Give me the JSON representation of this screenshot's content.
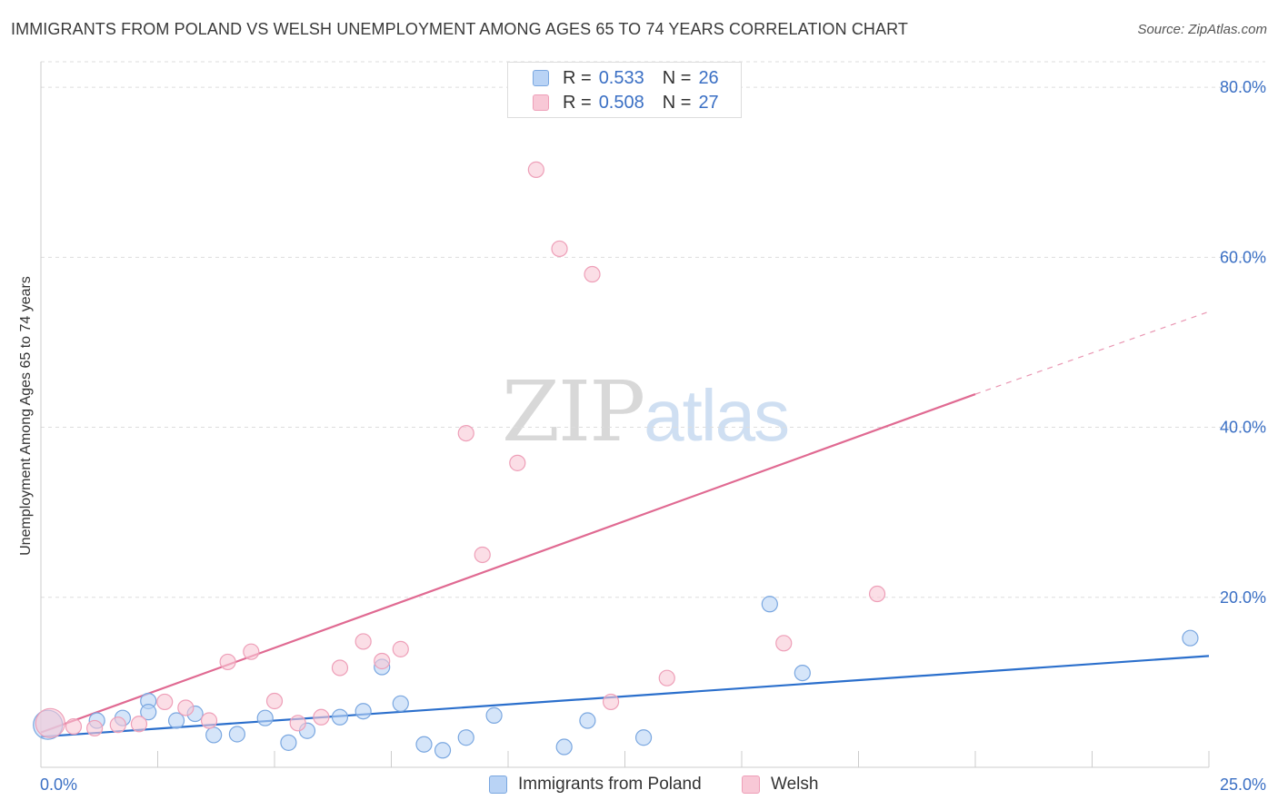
{
  "header": {
    "title": "IMMIGRANTS FROM POLAND VS WELSH UNEMPLOYMENT AMONG AGES 65 TO 74 YEARS CORRELATION CHART",
    "source": "Source: ZipAtlas.com"
  },
  "watermark": {
    "zip": "ZIP",
    "atlas": "atlas"
  },
  "legend": {
    "items": [
      {
        "r_label": "R =",
        "r_value": "0.533",
        "n_label": "N =",
        "n_value": "26"
      },
      {
        "r_label": "R =",
        "r_value": "0.508",
        "n_label": "N =",
        "n_value": "27"
      }
    ]
  },
  "bottom_legend": [
    "Immigrants from Poland",
    "Welsh"
  ],
  "colors": {
    "poland_fill": "#b9d3f5",
    "poland_stroke": "#7aa7e0",
    "poland_line": "#2b6fcc",
    "welsh_fill": "#f8c8d6",
    "welsh_stroke": "#ee9fb8",
    "welsh_line": "#e06a92",
    "grid": "#dddddd",
    "tick_text": "#3a6fc4"
  },
  "chart_data": {
    "type": "scatter",
    "title": "IMMIGRANTS FROM POLAND VS WELSH UNEMPLOYMENT AMONG AGES 65 TO 74 YEARS CORRELATION CHART",
    "xlabel": "",
    "ylabel": "Unemployment Among Ages 65 to 74 years",
    "xlim": [
      0,
      25
    ],
    "ylim": [
      0,
      83
    ],
    "x_tick_labels": [
      {
        "value": 0,
        "label": "0.0%"
      },
      {
        "value": 25,
        "label": "25.0%"
      }
    ],
    "y_tick_labels": [
      {
        "value": 20,
        "label": "20.0%"
      },
      {
        "value": 40,
        "label": "40.0%"
      },
      {
        "value": 60,
        "label": "60.0%"
      },
      {
        "value": 80,
        "label": "80.0%"
      }
    ],
    "grid": true,
    "series": [
      {
        "name": "Immigrants from Poland",
        "points": [
          {
            "x": 0.15,
            "y": 5.0,
            "size": "large"
          },
          {
            "x": 1.2,
            "y": 5.5
          },
          {
            "x": 1.75,
            "y": 5.8
          },
          {
            "x": 2.3,
            "y": 7.8
          },
          {
            "x": 2.3,
            "y": 6.5
          },
          {
            "x": 2.9,
            "y": 5.5
          },
          {
            "x": 3.3,
            "y": 6.3
          },
          {
            "x": 3.7,
            "y": 3.8
          },
          {
            "x": 4.2,
            "y": 3.9
          },
          {
            "x": 4.8,
            "y": 5.8
          },
          {
            "x": 5.3,
            "y": 2.9
          },
          {
            "x": 5.7,
            "y": 4.3
          },
          {
            "x": 6.4,
            "y": 5.9
          },
          {
            "x": 6.9,
            "y": 6.6
          },
          {
            "x": 7.3,
            "y": 11.8
          },
          {
            "x": 7.7,
            "y": 7.5
          },
          {
            "x": 8.2,
            "y": 2.7
          },
          {
            "x": 8.6,
            "y": 2.0
          },
          {
            "x": 9.1,
            "y": 3.5
          },
          {
            "x": 9.7,
            "y": 6.1
          },
          {
            "x": 11.2,
            "y": 2.4
          },
          {
            "x": 11.7,
            "y": 5.5
          },
          {
            "x": 12.9,
            "y": 3.5
          },
          {
            "x": 15.6,
            "y": 19.2
          },
          {
            "x": 16.3,
            "y": 11.1
          },
          {
            "x": 24.6,
            "y": 15.2
          }
        ]
      },
      {
        "name": "Welsh",
        "points": [
          {
            "x": 0.2,
            "y": 5.2,
            "size": "large"
          },
          {
            "x": 0.7,
            "y": 4.8
          },
          {
            "x": 1.15,
            "y": 4.6
          },
          {
            "x": 1.65,
            "y": 5.0
          },
          {
            "x": 2.1,
            "y": 5.1
          },
          {
            "x": 2.65,
            "y": 7.7
          },
          {
            "x": 3.1,
            "y": 7.0
          },
          {
            "x": 3.6,
            "y": 5.5
          },
          {
            "x": 4.0,
            "y": 12.4
          },
          {
            "x": 4.5,
            "y": 13.6
          },
          {
            "x": 5.0,
            "y": 7.8
          },
          {
            "x": 5.5,
            "y": 5.2
          },
          {
            "x": 6.0,
            "y": 5.9
          },
          {
            "x": 6.4,
            "y": 11.7
          },
          {
            "x": 6.9,
            "y": 14.8
          },
          {
            "x": 7.3,
            "y": 12.5
          },
          {
            "x": 7.7,
            "y": 13.9
          },
          {
            "x": 9.1,
            "y": 39.3
          },
          {
            "x": 9.45,
            "y": 25.0
          },
          {
            "x": 10.2,
            "y": 35.8
          },
          {
            "x": 10.6,
            "y": 70.3
          },
          {
            "x": 11.1,
            "y": 61.0
          },
          {
            "x": 11.8,
            "y": 58.0
          },
          {
            "x": 12.2,
            "y": 7.7
          },
          {
            "x": 13.4,
            "y": 10.5
          },
          {
            "x": 15.9,
            "y": 14.6
          },
          {
            "x": 17.9,
            "y": 20.4
          }
        ]
      }
    ],
    "trend_lines": [
      {
        "name": "Immigrants from Poland",
        "x1": 0,
        "y1": 3.6,
        "x2": 25,
        "y2": 13.1,
        "dashed_to": null
      },
      {
        "name": "Welsh",
        "x1": 0,
        "y1": 4.1,
        "x2": 20,
        "y2": 43.9,
        "dashed_to": {
          "x": 25,
          "y": 53.6
        }
      }
    ]
  }
}
